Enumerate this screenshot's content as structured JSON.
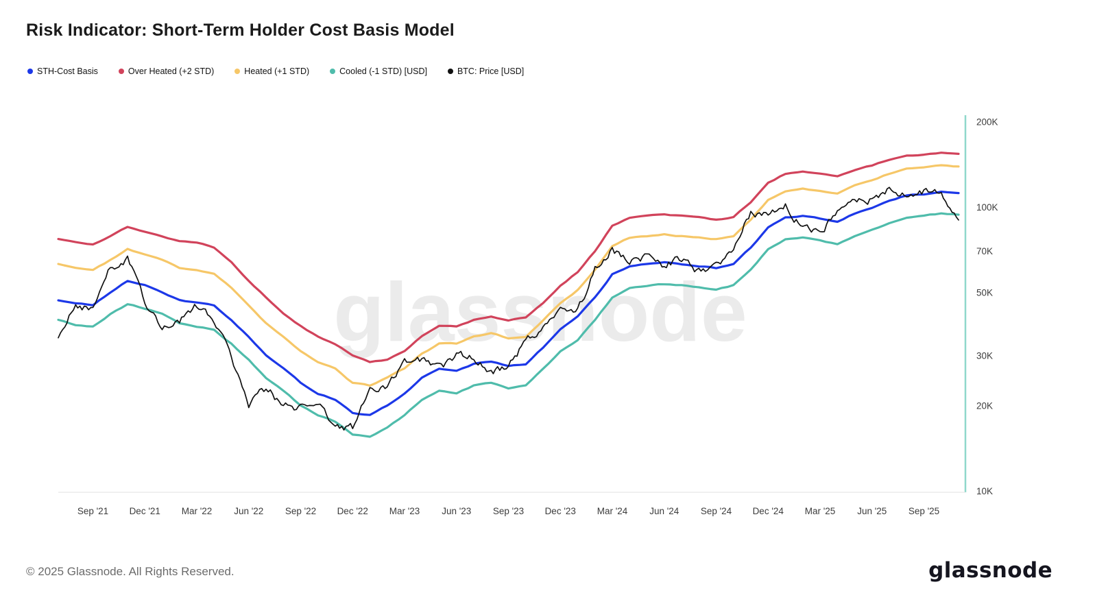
{
  "header": {
    "title": "Risk Indicator: Short-Term Holder Cost Basis Model"
  },
  "watermark": "glassnode",
  "footer": {
    "copyright": "© 2025 Glassnode. All Rights Reserved.",
    "logo_text": "glassnode"
  },
  "chart_data": {
    "type": "line",
    "title": "Risk Indicator: Short-Term Holder Cost Basis Model",
    "y_scale": "log",
    "values_unit": "USD (thousands)",
    "ylim": [
      10000,
      200000
    ],
    "y_tick_labels": [
      "200K",
      "100K",
      "70K",
      "50K",
      "30K",
      "20K",
      "10K"
    ],
    "y_tick_values": [
      200000,
      100000,
      70000,
      50000,
      30000,
      20000,
      10000
    ],
    "legend_position": "top-left",
    "grid": false,
    "x": [
      "Jul '21",
      "Aug '21",
      "Sep '21",
      "Oct '21",
      "Nov '21",
      "Dec '21",
      "Jan '22",
      "Feb '22",
      "Mar '22",
      "Apr '22",
      "May '22",
      "Jun '22",
      "Jul '22",
      "Aug '22",
      "Sep '22",
      "Oct '22",
      "Nov '22",
      "Dec '22",
      "Jan '23",
      "Feb '23",
      "Mar '23",
      "Apr '23",
      "May '23",
      "Jun '23",
      "Jul '23",
      "Aug '23",
      "Sep '23",
      "Oct '23",
      "Nov '23",
      "Dec '23",
      "Jan '24",
      "Feb '24",
      "Mar '24",
      "Apr '24",
      "May '24",
      "Jun '24",
      "Jul '24",
      "Aug '24",
      "Sep '24",
      "Oct '24",
      "Nov '24",
      "Dec '24",
      "Jan '25",
      "Feb '25",
      "Mar '25",
      "Apr '25",
      "May '25",
      "Jun '25",
      "Jul '25",
      "Aug '25",
      "Sep '25",
      "Oct '25",
      "Nov '25"
    ],
    "x_tick_labels": [
      "Sep '21",
      "Dec '21",
      "Mar '22",
      "Jun '22",
      "Sep '22",
      "Dec '22",
      "Mar '23",
      "Jun '23",
      "Sep '23",
      "Dec '23",
      "Mar '24",
      "Jun '24",
      "Sep '24",
      "Dec '24",
      "Mar '25",
      "Jun '25",
      "Sep '25"
    ],
    "series": [
      {
        "name": "STH-Cost Basis",
        "color": "#1c38e8",
        "values": [
          47,
          46,
          45,
          50,
          55,
          53,
          50,
          47,
          46,
          45,
          40,
          35,
          30,
          27,
          24,
          22,
          21,
          18.8,
          18.5,
          20,
          22,
          25,
          27,
          26.5,
          28,
          28.5,
          27.5,
          28,
          32,
          37,
          41,
          48,
          58,
          62,
          63,
          64,
          63,
          62,
          61,
          63,
          72,
          85,
          92,
          93,
          91,
          89,
          95,
          99,
          105,
          110,
          111,
          113,
          112
        ]
      },
      {
        "name": "Over Heated (+2 STD)",
        "color": "#d1435b",
        "values": [
          77,
          75,
          74,
          79,
          85,
          82,
          79,
          76,
          75,
          72,
          64,
          55,
          48,
          42,
          38,
          35,
          33,
          30,
          28.5,
          29,
          31,
          35,
          38,
          38,
          40,
          41,
          40,
          41,
          46,
          53,
          59,
          70,
          86,
          92,
          93,
          94,
          93,
          92,
          90,
          92,
          104,
          122,
          131,
          133,
          131,
          128,
          135,
          140,
          147,
          152,
          153,
          155,
          154
        ]
      },
      {
        "name": "Heated (+1 STD)",
        "color": "#f6c768",
        "values": [
          63,
          61,
          60,
          65,
          71,
          68,
          65,
          61,
          60,
          58,
          52,
          45,
          39,
          35,
          31,
          28.5,
          27,
          24,
          23.5,
          25,
          27,
          30.5,
          33,
          33,
          35,
          36,
          34.5,
          35,
          40,
          46,
          51,
          60,
          73,
          78,
          79,
          80,
          79,
          78,
          77,
          79,
          90,
          106,
          114,
          116,
          114,
          112,
          119,
          124,
          131,
          137,
          138,
          140,
          139
        ]
      },
      {
        "name": "Cooled (-1 STD) [USD]",
        "color": "#4fbcab",
        "values": [
          40,
          38.5,
          38,
          42,
          45.5,
          44,
          42,
          39,
          38,
          37,
          33,
          29,
          25,
          22.5,
          20,
          18.5,
          17.5,
          15.8,
          15.5,
          16.8,
          18.5,
          21,
          22.5,
          22,
          23.5,
          24,
          23,
          23.5,
          27,
          31,
          34,
          40,
          48,
          52,
          53,
          53.5,
          53,
          52,
          51,
          53,
          60,
          71,
          77,
          78,
          76,
          74,
          79,
          83,
          88,
          92,
          93,
          95,
          94
        ]
      },
      {
        "name": "BTC: Price [USD]",
        "color": "#111111",
        "values": [
          34,
          45,
          43,
          61,
          65,
          47,
          38,
          40,
          45,
          40,
          30,
          20,
          23,
          20,
          19.5,
          20.5,
          16.5,
          16.7,
          23,
          23.5,
          28,
          29,
          27,
          30,
          29.2,
          26,
          27,
          34,
          37.7,
          42.3,
          43,
          61,
          71,
          63,
          68,
          62,
          66,
          59,
          63,
          70,
          96,
          93,
          102,
          84,
          82,
          94,
          104,
          107,
          116,
          108,
          114,
          110,
          90
        ]
      }
    ]
  }
}
